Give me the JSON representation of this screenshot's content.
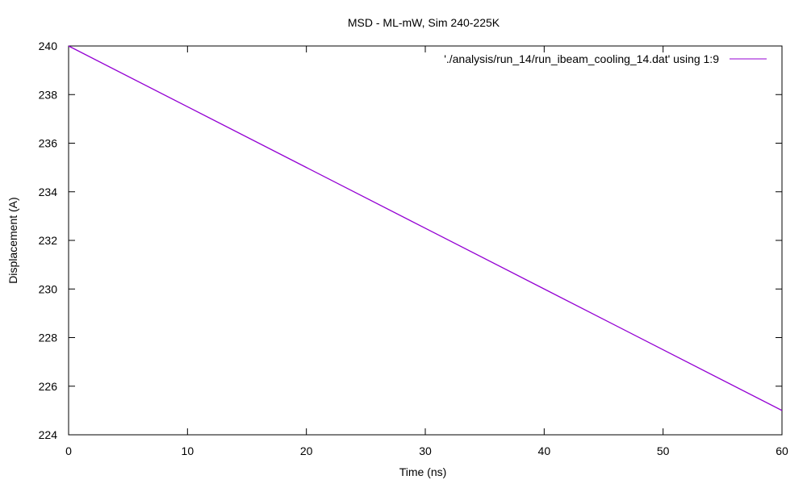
{
  "chart_data": {
    "type": "line",
    "title": "MSD - ML-mW, Sim 240-225K",
    "xlabel": "Time (ns)",
    "ylabel": "Displacement (A)",
    "xlim": [
      0,
      60
    ],
    "ylim": [
      224,
      240
    ],
    "xticks": [
      0,
      10,
      20,
      30,
      40,
      50,
      60
    ],
    "yticks": [
      224,
      226,
      228,
      230,
      232,
      234,
      236,
      238,
      240
    ],
    "grid": false,
    "legend_position": "top-right",
    "series": [
      {
        "name": "'./analysis/run_14/run_ibeam_cooling_14.dat' using 1:9",
        "color": "#9400d3",
        "x": [
          0,
          10,
          20,
          30,
          40,
          50,
          60
        ],
        "y": [
          240,
          237.5,
          235,
          232.5,
          230,
          227.5,
          225
        ]
      }
    ]
  }
}
